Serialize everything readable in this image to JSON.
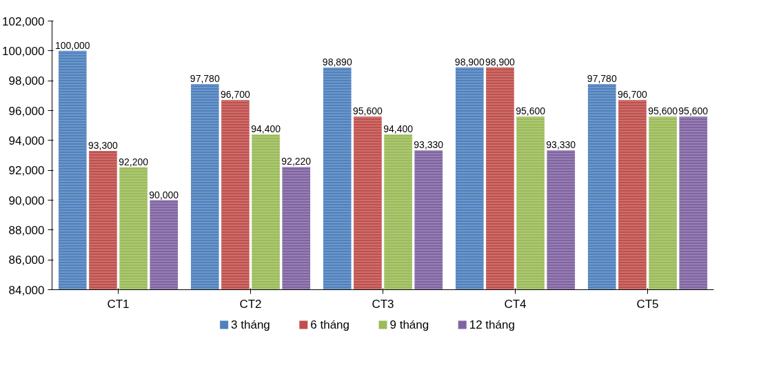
{
  "chart_data": {
    "type": "bar",
    "categories": [
      "CT1",
      "CT2",
      "CT3",
      "CT4",
      "CT5"
    ],
    "series": [
      {
        "name": "3 tháng",
        "color": "#4f81bd",
        "values": [
          100000,
          97780,
          98890,
          98900,
          97780
        ],
        "value_labels": [
          "100,000",
          "97,780",
          "98,890",
          "98,900",
          "97,780"
        ]
      },
      {
        "name": "6 tháng",
        "color": "#c0504d",
        "values": [
          93300,
          96700,
          95600,
          98900,
          96700
        ],
        "value_labels": [
          "93,300",
          "96,700",
          "95,600",
          "98,900",
          "96,700"
        ]
      },
      {
        "name": "9 tháng",
        "color": "#9bbb59",
        "values": [
          92200,
          94400,
          94400,
          95600,
          95600
        ],
        "value_labels": [
          "92,200",
          "94,400",
          "94,400",
          "95,600",
          "95,600"
        ]
      },
      {
        "name": "12 tháng",
        "color": "#8064a2",
        "values": [
          90000,
          92220,
          93330,
          93330,
          95600
        ],
        "value_labels": [
          "90,000",
          "92,220",
          "93,330",
          "93,330",
          "95,600"
        ]
      }
    ],
    "ylim": [
      84000,
      102000
    ],
    "yticks": [
      {
        "value": 84000,
        "label": "84,000"
      },
      {
        "value": 86000,
        "label": "86,000"
      },
      {
        "value": 88000,
        "label": "88,000"
      },
      {
        "value": 90000,
        "label": "90,000"
      },
      {
        "value": 92000,
        "label": "92,000"
      },
      {
        "value": 94000,
        "label": "94,000"
      },
      {
        "value": 96000,
        "label": "96,000"
      },
      {
        "value": 98000,
        "label": "98,000"
      },
      {
        "value": 100000,
        "label": "100,000"
      },
      {
        "value": 102000,
        "label": "102,000"
      }
    ],
    "legend": "bottom"
  }
}
